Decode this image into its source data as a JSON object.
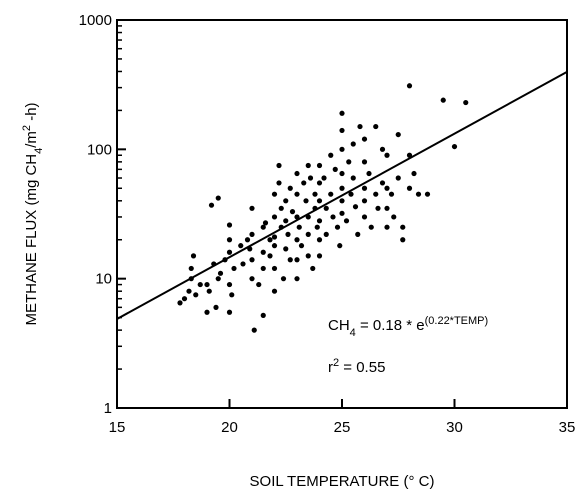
{
  "chart_data": {
    "type": "scatter",
    "xlabel": "SOIL TEMPERATURE (° C)",
    "ylabel_parts": [
      {
        "text": "METHANE  FLUX (mg CH",
        "shift": "normal"
      },
      {
        "text": "4",
        "shift": "sub"
      },
      {
        "text": "/m",
        "shift": "normal"
      },
      {
        "text": "2",
        "shift": "super"
      },
      {
        "text": " -h)",
        "shift": "normal"
      }
    ],
    "annotations": [
      [
        {
          "text": "CH",
          "shift": "normal"
        },
        {
          "text": "4",
          "shift": "sub"
        },
        {
          "text": " = 0.18 * e",
          "shift": "normal"
        },
        {
          "text": "(0.22*TEMP)",
          "shift": "super"
        }
      ],
      [
        {
          "text": "r",
          "shift": "normal"
        },
        {
          "text": "2",
          "shift": "super"
        },
        {
          "text": " = 0.55",
          "shift": "normal"
        }
      ]
    ],
    "xlim": [
      15,
      35
    ],
    "xticks": [
      15,
      20,
      25,
      30,
      35
    ],
    "ylim": [
      1,
      1000
    ],
    "yticks": [
      1,
      10,
      100,
      1000
    ],
    "ylog": true,
    "yminor_ticks": [
      2,
      3,
      4,
      5,
      6,
      7,
      8,
      9,
      20,
      30,
      40,
      50,
      60,
      70,
      80,
      90,
      200,
      300,
      400,
      500,
      600,
      700,
      800,
      900
    ],
    "series": [
      {
        "kind": "points",
        "color": "#000000",
        "x": [
          17.8,
          18,
          18.2,
          18.3,
          18.3,
          18.4,
          18.5,
          18.7,
          19,
          19,
          19.1,
          19.2,
          19.3,
          19.4,
          19.5,
          19.5,
          19.6,
          19.8,
          20,
          20,
          20,
          20,
          20,
          20.2,
          20.1,
          20.5,
          20.6,
          20.8,
          20.9,
          21,
          21,
          21,
          21,
          21.1,
          21.3,
          21.5,
          21.5,
          21.5,
          21.5,
          21.6,
          21.8,
          21.8,
          22,
          22,
          22,
          22,
          22,
          22,
          22.2,
          22.2,
          22.3,
          22.3,
          22.4,
          22.5,
          22.5,
          22.5,
          22.6,
          22.7,
          22.7,
          22.8,
          23,
          23,
          23,
          23,
          23,
          23,
          23.1,
          23.2,
          23.3,
          23.4,
          23.5,
          23.5,
          23.5,
          23.5,
          23.6,
          23.7,
          23.8,
          23.8,
          23.9,
          24,
          24,
          24,
          24,
          24,
          24,
          24.2,
          24.3,
          24.3,
          24.5,
          24.5,
          24.6,
          24.7,
          24.8,
          24.9,
          25,
          25,
          25,
          25,
          25,
          25,
          25,
          25.2,
          25.3,
          25.4,
          25.5,
          25.5,
          25.6,
          25.7,
          25.8,
          26,
          26,
          26,
          26,
          26,
          26.2,
          26.3,
          26.5,
          26.5,
          26.6,
          26.8,
          26.8,
          27,
          27,
          27,
          27,
          27.2,
          27.3,
          27.5,
          27.5,
          27.7,
          27.7,
          28,
          28,
          28,
          28.2,
          28.4,
          28.8,
          29.5,
          30,
          30.5
        ],
        "values": [
          6.5,
          7,
          8,
          10,
          12,
          15,
          7.5,
          9,
          5.5,
          9,
          8,
          37,
          13,
          6,
          42,
          10,
          11,
          14,
          20,
          16,
          26,
          5.5,
          9,
          12,
          7.5,
          18,
          13,
          20,
          17,
          22,
          10,
          14,
          35,
          4,
          9,
          5.2,
          12,
          16,
          25,
          27,
          20,
          15,
          30,
          21,
          18,
          12,
          8,
          45,
          55,
          75,
          35,
          25,
          10,
          17,
          28,
          40,
          22,
          14,
          50,
          33,
          65,
          45,
          30,
          20,
          14,
          10,
          25,
          18,
          55,
          40,
          75,
          30,
          22,
          15,
          60,
          12,
          35,
          45,
          25,
          75,
          55,
          40,
          28,
          20,
          15,
          60,
          35,
          22,
          90,
          45,
          30,
          70,
          25,
          18,
          190,
          140,
          100,
          65,
          50,
          40,
          32,
          28,
          80,
          45,
          110,
          60,
          36,
          22,
          150,
          120,
          80,
          50,
          40,
          30,
          65,
          25,
          150,
          45,
          35,
          100,
          55,
          90,
          50,
          35,
          25,
          45,
          30,
          130,
          60,
          20,
          25,
          310,
          90,
          50,
          65,
          45,
          45,
          240,
          105,
          230
        ]
      },
      {
        "kind": "line",
        "color": "#000000",
        "x": [
          15,
          35
        ],
        "values": [
          4.88,
          397
        ]
      }
    ]
  }
}
